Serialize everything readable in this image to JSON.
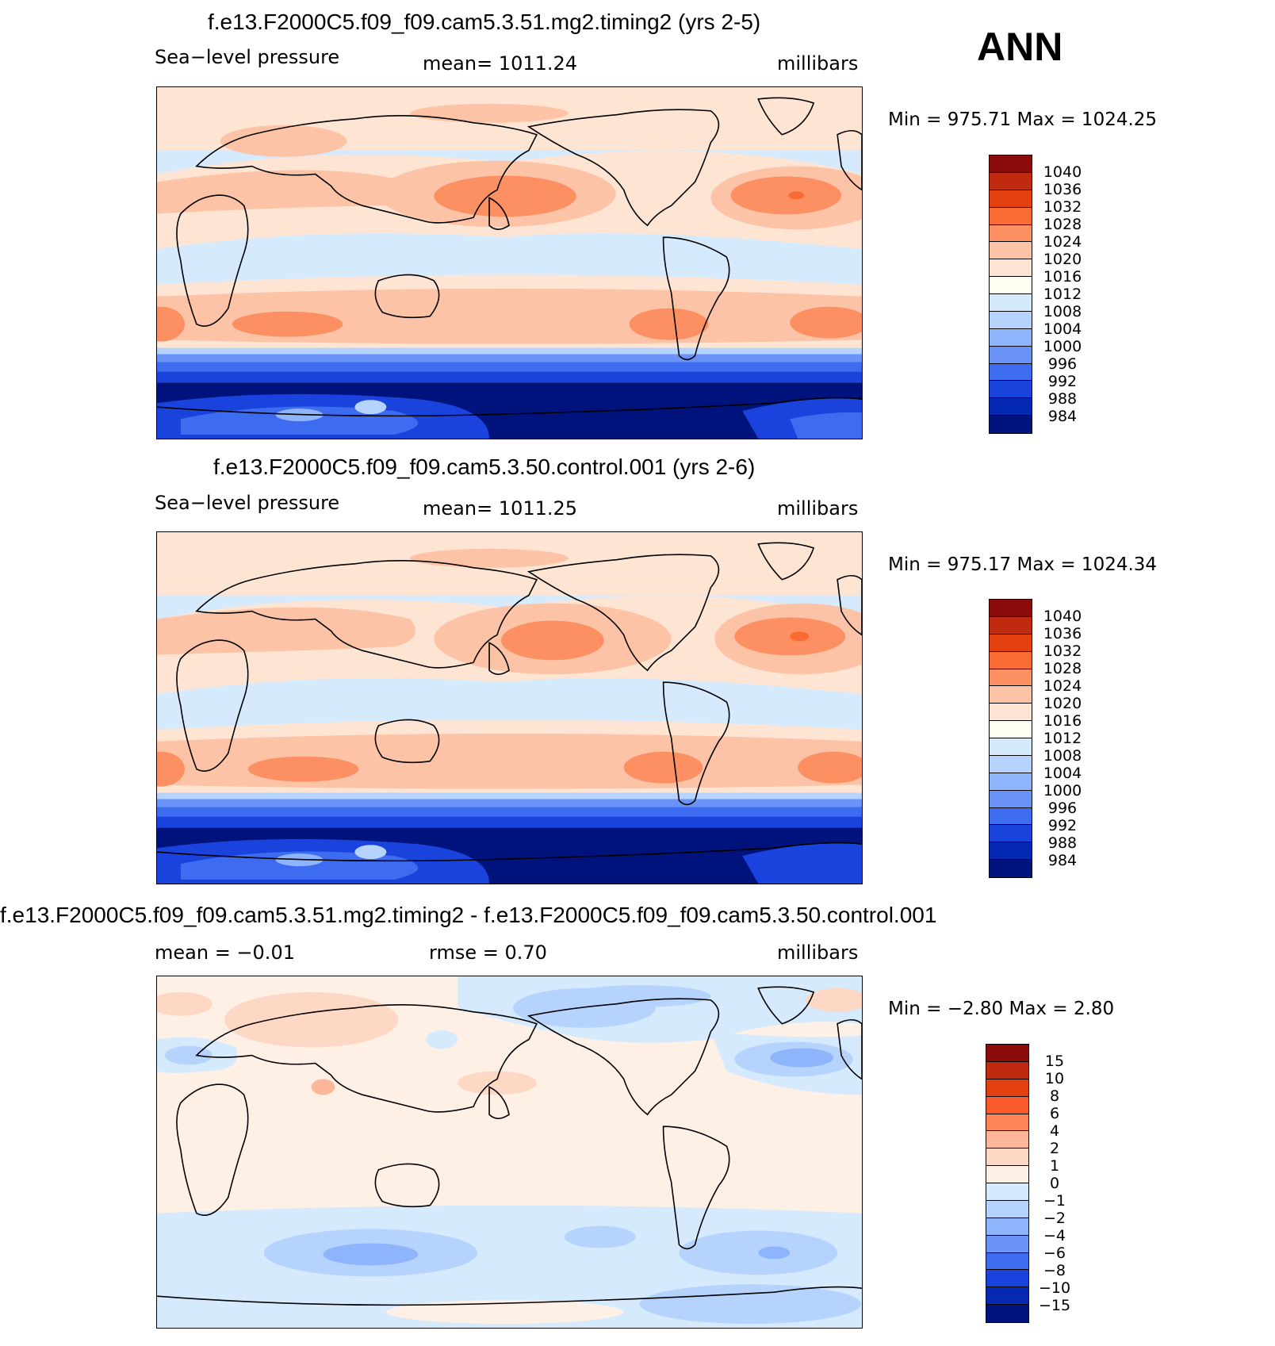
{
  "season": "ANN",
  "panels": [
    {
      "title": "f.e13.F2000C5.f09_f09.cam5.3.51.mg2.timing2 (yrs 2-5)",
      "left_label": "Sea−level pressure",
      "center_label": "mean=  1011.24",
      "units": "millibars",
      "minmax": "Min  =  975.71  Max  =  1024.25",
      "colorbar_labels": [
        "1040",
        "1036",
        "1032",
        "1028",
        "1024",
        "1020",
        "1016",
        "1012",
        "1008",
        "1004",
        "1000",
        "996",
        "992",
        "988",
        "984"
      ],
      "colorbar_colors": [
        "#8b0a0a",
        "#c02b10",
        "#e3400f",
        "#fa6a33",
        "#fc9062",
        "#fdc3a6",
        "#fde4d3",
        "#fffff0",
        "#d6eafe",
        "#b6d3fe",
        "#8eb5fb",
        "#6a93f7",
        "#3d6cf0",
        "#1a43dd",
        "#0629b4",
        "#00137d"
      ]
    },
    {
      "title": "f.e13.F2000C5.f09_f09.cam5.3.50.control.001 (yrs 2-6)",
      "left_label": "Sea−level pressure",
      "center_label": "mean=  1011.25",
      "units": "millibars",
      "minmax": "Min  =  975.17  Max  =  1024.34",
      "colorbar_labels": [
        "1040",
        "1036",
        "1032",
        "1028",
        "1024",
        "1020",
        "1016",
        "1012",
        "1008",
        "1004",
        "1000",
        "996",
        "992",
        "988",
        "984"
      ],
      "colorbar_colors": [
        "#8b0a0a",
        "#c02b10",
        "#e3400f",
        "#fa6a33",
        "#fc9062",
        "#fdc3a6",
        "#fde4d3",
        "#fffff0",
        "#d6eafe",
        "#b6d3fe",
        "#8eb5fb",
        "#6a93f7",
        "#3d6cf0",
        "#1a43dd",
        "#0629b4",
        "#00137d"
      ]
    },
    {
      "title": "f.e13.F2000C5.f09_f09.cam5.3.51.mg2.timing2 - f.e13.F2000C5.f09_f09.cam5.3.50.control.001",
      "left_label": "mean  =    −0.01",
      "center_label": "rmse  =      0.70",
      "units": "millibars",
      "minmax": "Min  =    −2.80  Max  =      2.80",
      "colorbar_labels": [
        "15",
        "10",
        "8",
        "6",
        "4",
        "2",
        "1",
        "0",
        "−1",
        "−2",
        "−4",
        "−6",
        "−8",
        "−10",
        "−15"
      ],
      "colorbar_colors": [
        "#8b0a0a",
        "#c02b10",
        "#e3400f",
        "#fa5a2a",
        "#fc8456",
        "#fdb698",
        "#fdd8c4",
        "#fff0e6",
        "#d6eafe",
        "#b6d3fe",
        "#8eb5fb",
        "#6a93f7",
        "#3d6cf0",
        "#1a43dd",
        "#0629b4",
        "#00137d"
      ]
    }
  ]
}
